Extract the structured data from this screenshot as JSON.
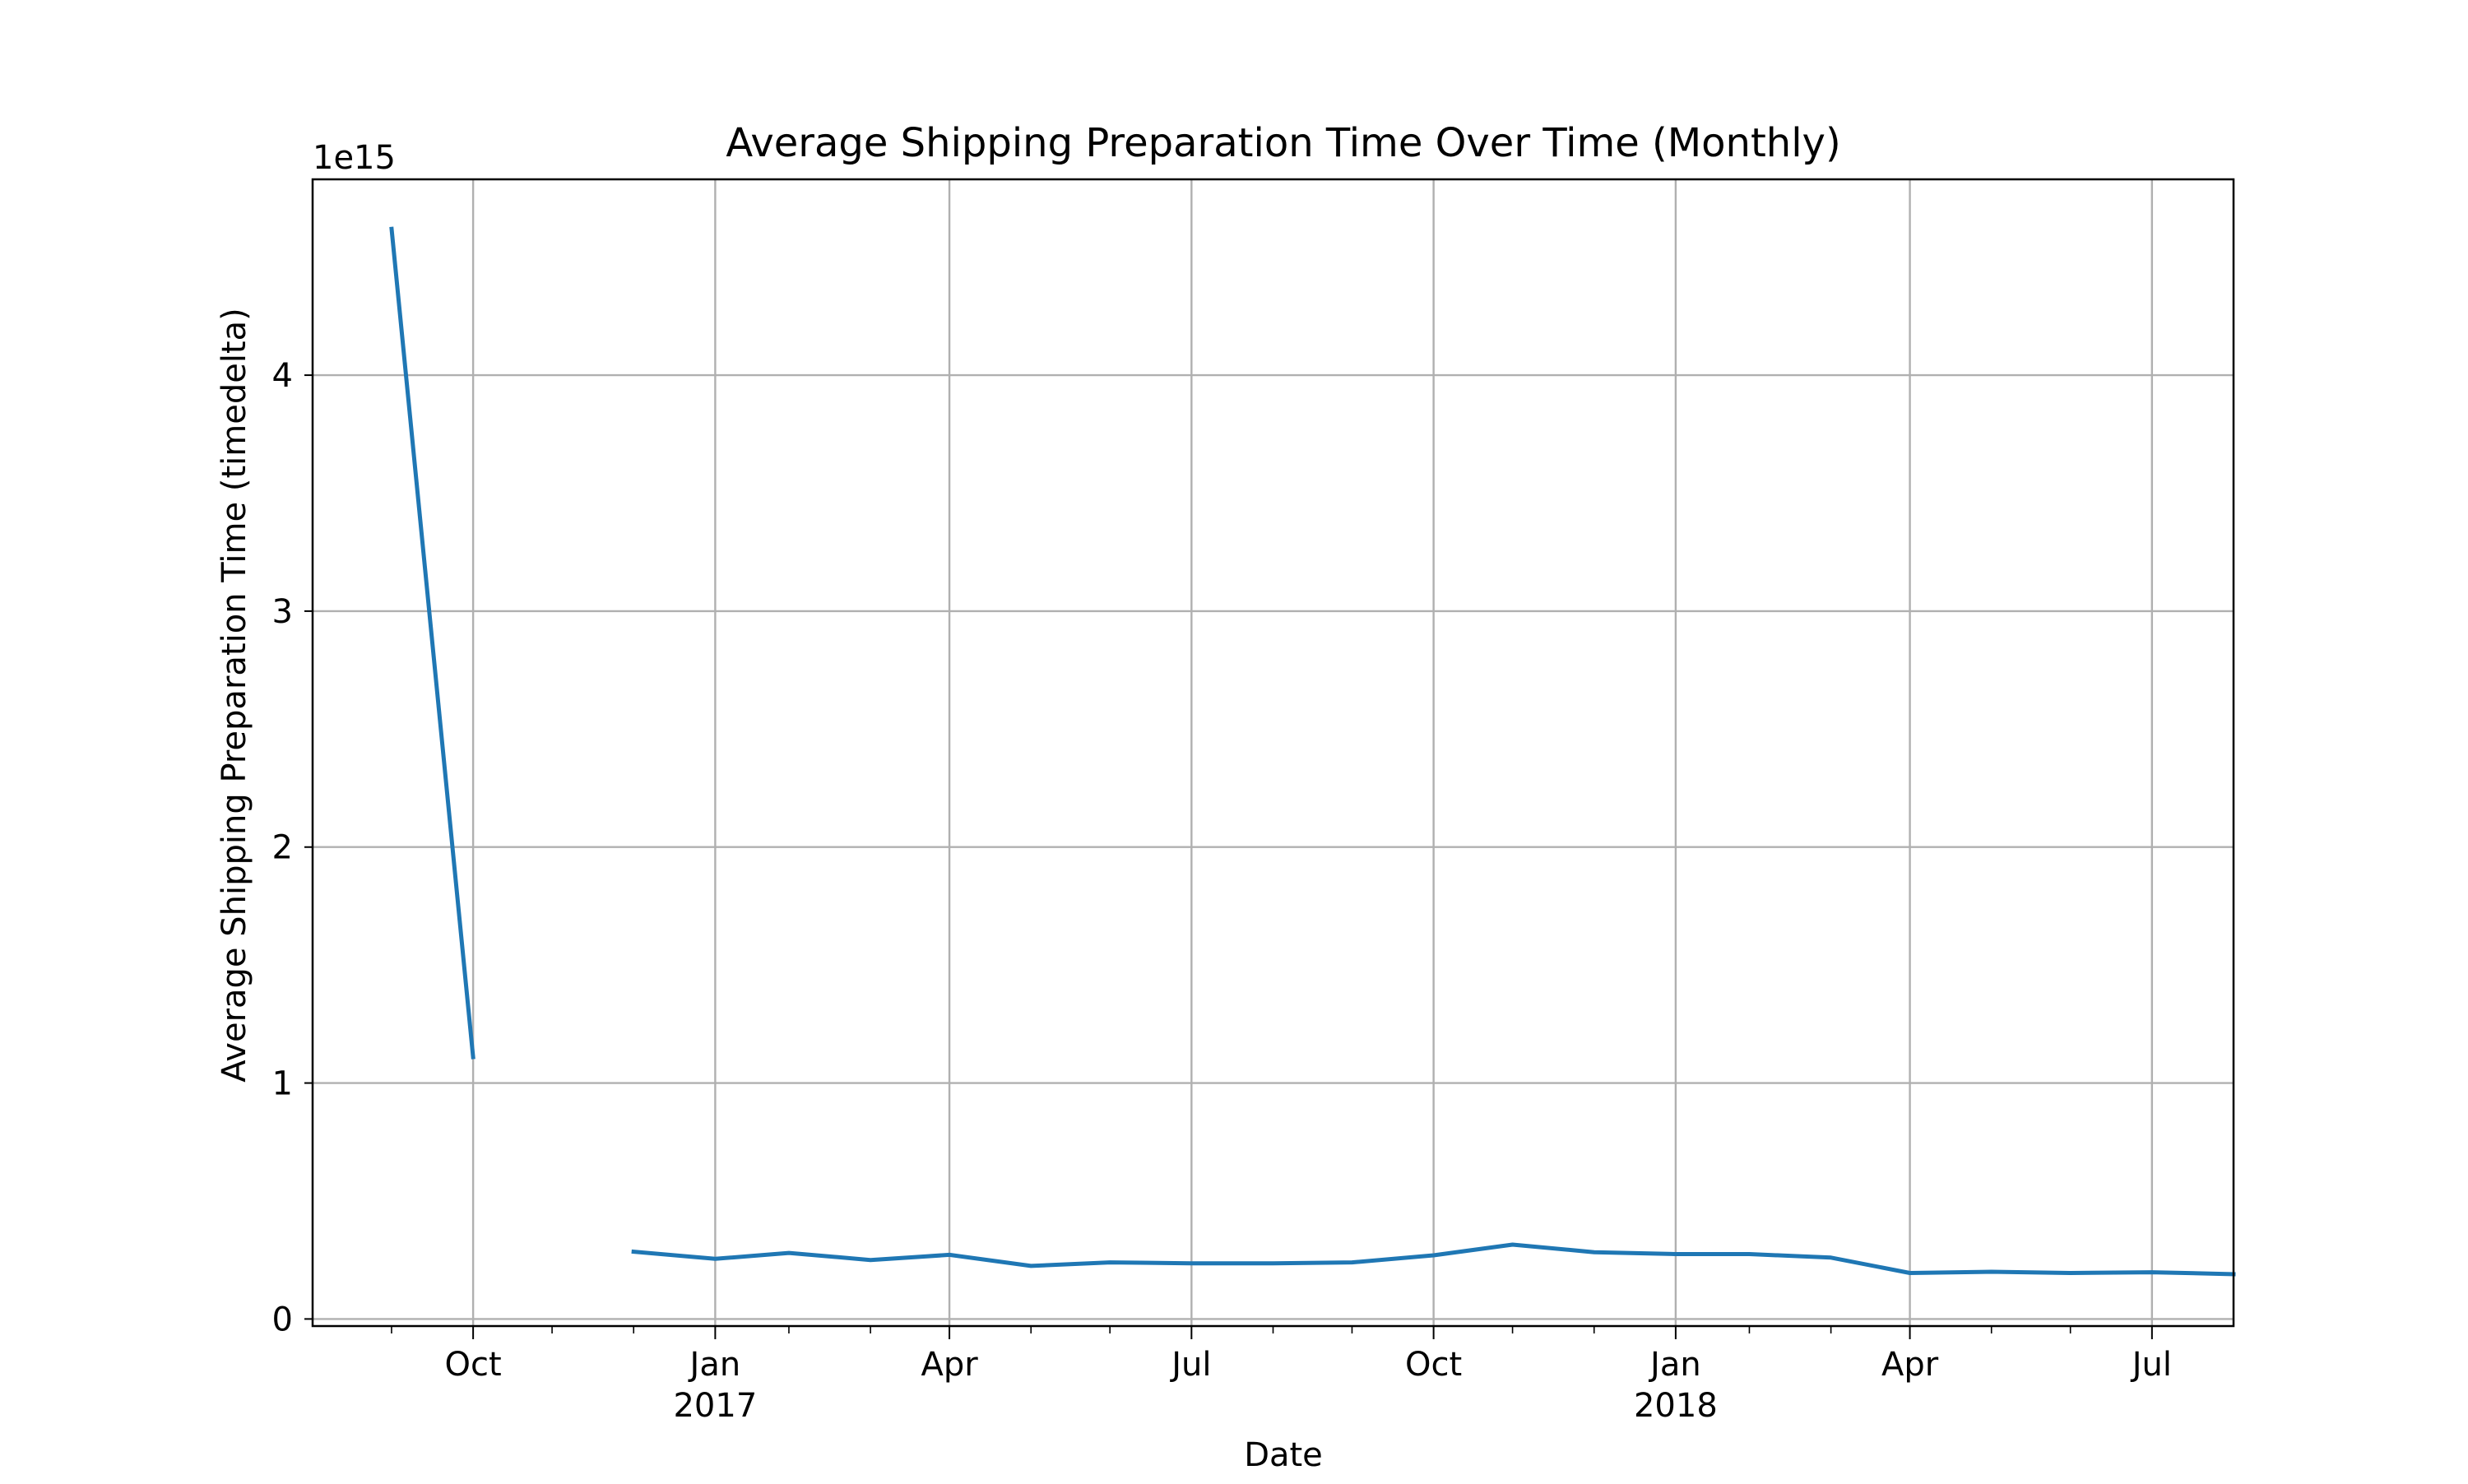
{
  "chart_data": {
    "type": "line",
    "title": "Average Shipping Preparation Time Over Time (Monthly)",
    "xlabel": "Date",
    "ylabel": "Average Shipping Preparation Time (timedelta)",
    "y_offset_label": "1e15",
    "ylim": [
      -0.03,
      4.83
    ],
    "xlim": [
      "2016-08-31",
      "2018-08-31"
    ],
    "grid": true,
    "line_color": "#1f77b4",
    "x_major_ticks": [
      {
        "date": "2016-10-31",
        "label": "Oct",
        "sublabel": ""
      },
      {
        "date": "2017-01-31",
        "label": "Jan",
        "sublabel": "2017"
      },
      {
        "date": "2017-04-30",
        "label": "Apr",
        "sublabel": ""
      },
      {
        "date": "2017-07-31",
        "label": "Jul",
        "sublabel": ""
      },
      {
        "date": "2017-10-31",
        "label": "Oct",
        "sublabel": ""
      },
      {
        "date": "2018-01-31",
        "label": "Jan",
        "sublabel": "2018"
      },
      {
        "date": "2018-04-30",
        "label": "Apr",
        "sublabel": ""
      },
      {
        "date": "2018-07-31",
        "label": "Jul",
        "sublabel": ""
      }
    ],
    "x_minor_ticks": [
      "2016-09-30",
      "2016-11-30",
      "2016-12-31",
      "2017-02-28",
      "2017-03-31",
      "2017-05-31",
      "2017-06-30",
      "2017-08-31",
      "2017-09-30",
      "2017-11-30",
      "2017-12-31",
      "2018-02-28",
      "2018-03-31",
      "2018-05-31",
      "2018-06-30"
    ],
    "y_ticks": [
      {
        "value": 0,
        "label": "0"
      },
      {
        "value": 1,
        "label": "1"
      },
      {
        "value": 2,
        "label": "2"
      },
      {
        "value": 3,
        "label": "3"
      },
      {
        "value": 4,
        "label": "4"
      }
    ],
    "series": [
      {
        "points": [
          {
            "x": "2016-09-30",
            "y": 4.62
          },
          {
            "x": "2016-10-31",
            "y": 1.11
          },
          {
            "x": "2016-11-30",
            "y": null
          },
          {
            "x": "2016-12-31",
            "y": 0.285
          },
          {
            "x": "2017-01-31",
            "y": 0.255
          },
          {
            "x": "2017-02-28",
            "y": 0.28
          },
          {
            "x": "2017-03-31",
            "y": 0.25
          },
          {
            "x": "2017-04-30",
            "y": 0.272
          },
          {
            "x": "2017-05-31",
            "y": 0.225
          },
          {
            "x": "2017-06-30",
            "y": 0.24
          },
          {
            "x": "2017-07-31",
            "y": 0.236
          },
          {
            "x": "2017-08-31",
            "y": 0.236
          },
          {
            "x": "2017-09-30",
            "y": 0.24
          },
          {
            "x": "2017-10-31",
            "y": 0.27
          },
          {
            "x": "2017-11-30",
            "y": 0.315
          },
          {
            "x": "2017-12-31",
            "y": 0.283
          },
          {
            "x": "2018-01-31",
            "y": 0.275
          },
          {
            "x": "2018-02-28",
            "y": 0.275
          },
          {
            "x": "2018-03-31",
            "y": 0.26
          },
          {
            "x": "2018-04-30",
            "y": 0.195
          },
          {
            "x": "2018-05-31",
            "y": 0.2
          },
          {
            "x": "2018-06-30",
            "y": 0.195
          },
          {
            "x": "2018-07-31",
            "y": 0.198
          },
          {
            "x": "2018-08-31",
            "y": 0.19
          }
        ]
      }
    ]
  }
}
